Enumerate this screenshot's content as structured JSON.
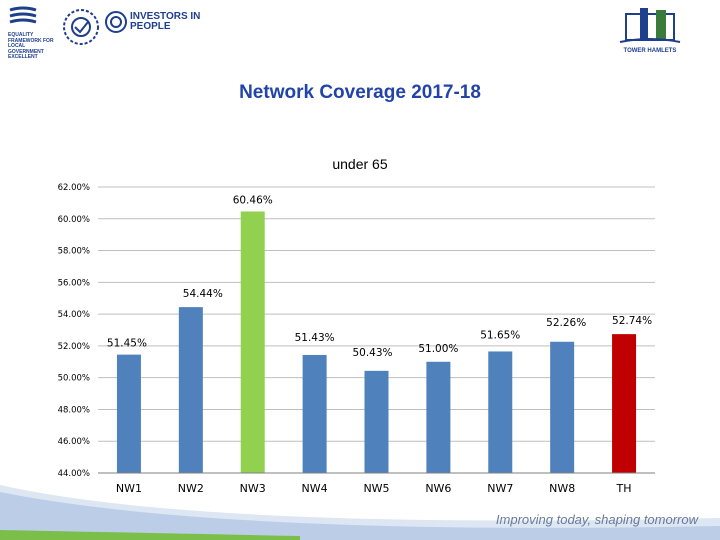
{
  "header": {
    "logos": {
      "equality_text": "EQUALITY FRAMEWORK FOR LOCAL GOVERNMENT EXCELLENT",
      "iip_text": "INVESTORS IN PEOPLE",
      "tower_hamlets_text": "TOWER HAMLETS"
    }
  },
  "page": {
    "title": "Network Coverage 2017-18"
  },
  "footer": {
    "tagline": "Improving today, shaping tomorrow"
  },
  "colors": {
    "bar_default": "#4f81bd",
    "bar_highlight_max": "#92d050",
    "bar_total": "#c00000",
    "title": "#2244aa"
  },
  "chart_data": {
    "type": "bar",
    "title": "under 65",
    "categories": [
      "NW1",
      "NW2",
      "NW3",
      "NW4",
      "NW5",
      "NW6",
      "NW7",
      "NW8",
      "TH"
    ],
    "values": [
      51.45,
      54.44,
      60.46,
      51.43,
      50.43,
      51.0,
      51.65,
      52.26,
      52.74
    ],
    "data_labels": [
      "51.45%",
      "54.44%",
      "60.46%",
      "51.43%",
      "50.43%",
      "51.00%",
      "51.65%",
      "52.26%",
      "52.74%"
    ],
    "ylim": [
      44,
      62
    ],
    "yticks": [
      44,
      46,
      48,
      50,
      52,
      54,
      56,
      58,
      60,
      62
    ],
    "ytick_labels": [
      "44.00%",
      "46.00%",
      "48.00%",
      "50.00%",
      "52.00%",
      "54.00%",
      "56.00%",
      "58.00%",
      "60.00%",
      "62.00%"
    ],
    "grid": true,
    "bar_colors": [
      "#4f81bd",
      "#4f81bd",
      "#92d050",
      "#4f81bd",
      "#4f81bd",
      "#4f81bd",
      "#4f81bd",
      "#4f81bd",
      "#c00000"
    ]
  }
}
